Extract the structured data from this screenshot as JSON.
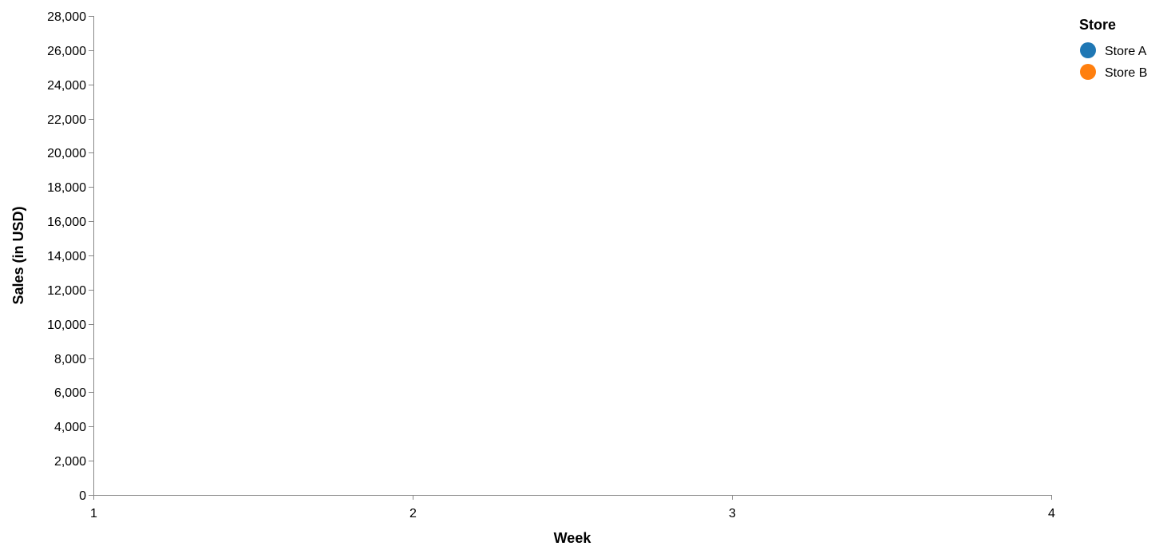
{
  "chart_data": {
    "type": "scatter",
    "title": "",
    "xlabel": "Week",
    "ylabel": "Sales (in USD)",
    "xlim": [
      1,
      4
    ],
    "ylim": [
      0,
      28000
    ],
    "x_ticks": [
      1,
      2,
      3,
      4
    ],
    "y_ticks": [
      0,
      2000,
      4000,
      6000,
      8000,
      10000,
      12000,
      14000,
      16000,
      18000,
      20000,
      22000,
      24000,
      26000,
      28000
    ],
    "grid": false,
    "legend": {
      "title": "Store",
      "placement": "top-right",
      "entries": [
        {
          "label": "Store A",
          "color": "#1f77b4"
        },
        {
          "label": "Store B",
          "color": "#ff7f0e"
        }
      ]
    },
    "series": [
      {
        "name": "Store A",
        "color": "#1f77b4",
        "points": []
      },
      {
        "name": "Store B",
        "color": "#ff7f0e",
        "points": []
      }
    ]
  }
}
